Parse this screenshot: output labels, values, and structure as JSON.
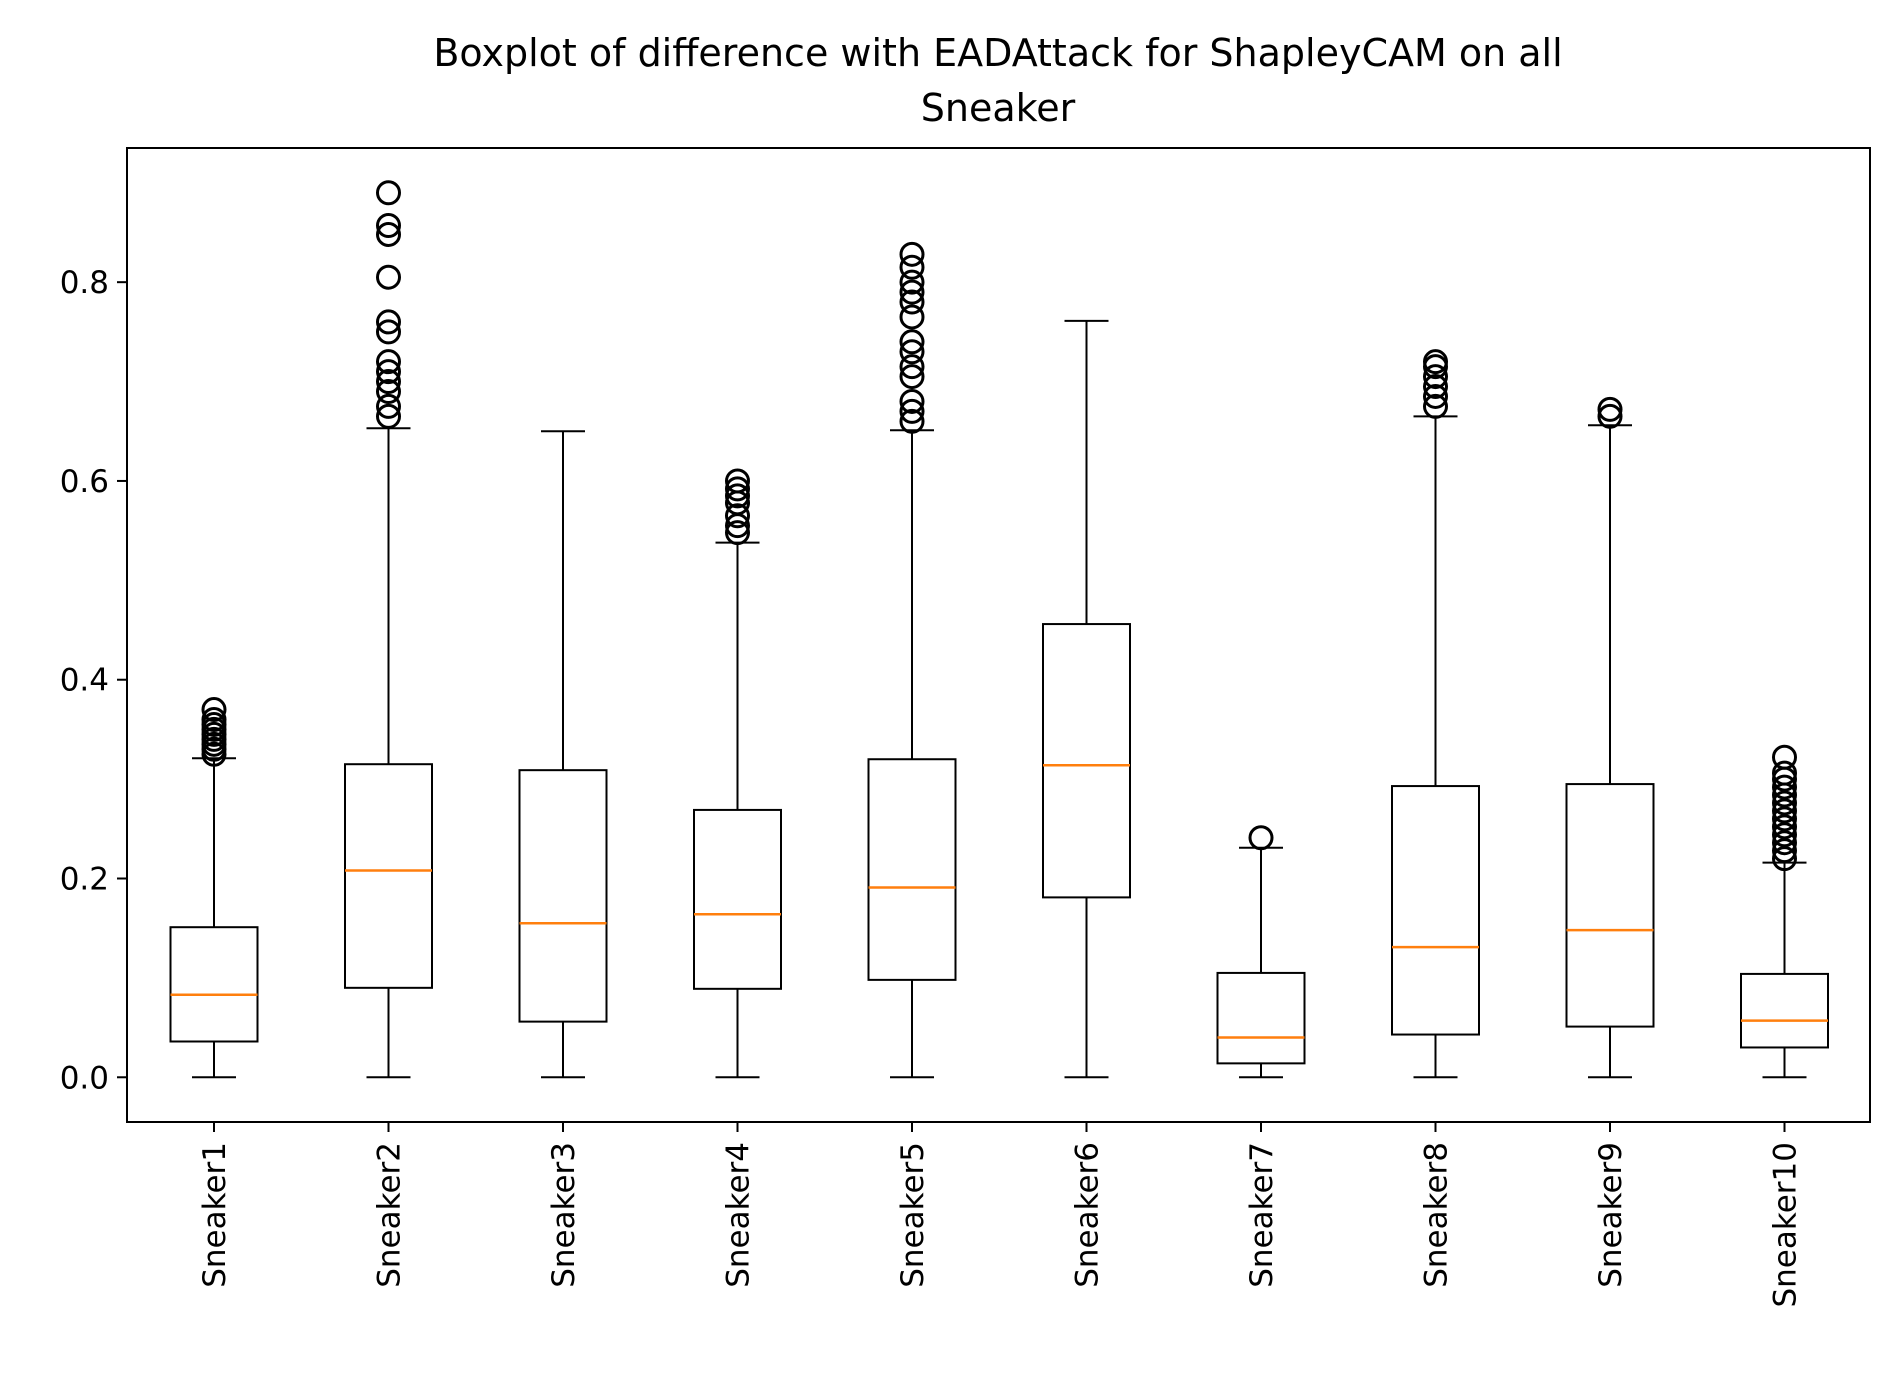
{
  "chart_data": {
    "type": "boxplot",
    "title_lines": [
      "Boxplot of difference with EADAttack for ShapleyCAM on all",
      "Sneaker"
    ],
    "xlabel": "",
    "ylabel": "",
    "ylim": [
      -0.045,
      0.935
    ],
    "yticks": [
      0.0,
      0.2,
      0.4,
      0.6,
      0.8
    ],
    "ytick_labels": [
      "0.0",
      "0.2",
      "0.4",
      "0.6",
      "0.8"
    ],
    "grid": false,
    "box_color": "#000000",
    "median_color": "#ff7f0e",
    "categories": [
      "Sneaker1",
      "Sneaker2",
      "Sneaker3",
      "Sneaker4",
      "Sneaker5",
      "Sneaker6",
      "Sneaker7",
      "Sneaker8",
      "Sneaker9",
      "Sneaker10"
    ],
    "boxes": [
      {
        "whisker_low": 0.0,
        "q1": 0.036,
        "median": 0.083,
        "q3": 0.151,
        "whisker_high": 0.321,
        "outliers": [
          0.325,
          0.33,
          0.335,
          0.34,
          0.345,
          0.35,
          0.355,
          0.36,
          0.37
        ]
      },
      {
        "whisker_low": 0.0,
        "q1": 0.09,
        "median": 0.208,
        "q3": 0.315,
        "whisker_high": 0.653,
        "outliers": [
          0.665,
          0.675,
          0.69,
          0.7,
          0.71,
          0.72,
          0.75,
          0.76,
          0.805,
          0.848,
          0.857,
          0.89
        ]
      },
      {
        "whisker_low": 0.0,
        "q1": 0.056,
        "median": 0.155,
        "q3": 0.309,
        "whisker_high": 0.65,
        "outliers": []
      },
      {
        "whisker_low": 0.0,
        "q1": 0.089,
        "median": 0.164,
        "q3": 0.269,
        "whisker_high": 0.538,
        "outliers": [
          0.548,
          0.555,
          0.565,
          0.578,
          0.585,
          0.592,
          0.6
        ]
      },
      {
        "whisker_low": 0.0,
        "q1": 0.098,
        "median": 0.191,
        "q3": 0.32,
        "whisker_high": 0.651,
        "outliers": [
          0.66,
          0.67,
          0.68,
          0.705,
          0.715,
          0.73,
          0.74,
          0.765,
          0.78,
          0.79,
          0.8,
          0.815,
          0.828
        ]
      },
      {
        "whisker_low": 0.0,
        "q1": 0.181,
        "median": 0.314,
        "q3": 0.456,
        "whisker_high": 0.761,
        "outliers": []
      },
      {
        "whisker_low": 0.0,
        "q1": 0.014,
        "median": 0.04,
        "q3": 0.105,
        "whisker_high": 0.231,
        "outliers": [
          0.241
        ]
      },
      {
        "whisker_low": 0.0,
        "q1": 0.043,
        "median": 0.131,
        "q3": 0.293,
        "whisker_high": 0.665,
        "outliers": [
          0.675,
          0.685,
          0.695,
          0.705,
          0.715,
          0.72
        ]
      },
      {
        "whisker_low": 0.0,
        "q1": 0.051,
        "median": 0.148,
        "q3": 0.295,
        "whisker_high": 0.656,
        "outliers": [
          0.665,
          0.672
        ]
      },
      {
        "whisker_low": 0.0,
        "q1": 0.03,
        "median": 0.057,
        "q3": 0.104,
        "whisker_high": 0.216,
        "outliers": [
          0.22,
          0.228,
          0.236,
          0.244,
          0.252,
          0.26,
          0.268,
          0.276,
          0.284,
          0.292,
          0.3,
          0.306,
          0.322
        ]
      }
    ]
  }
}
